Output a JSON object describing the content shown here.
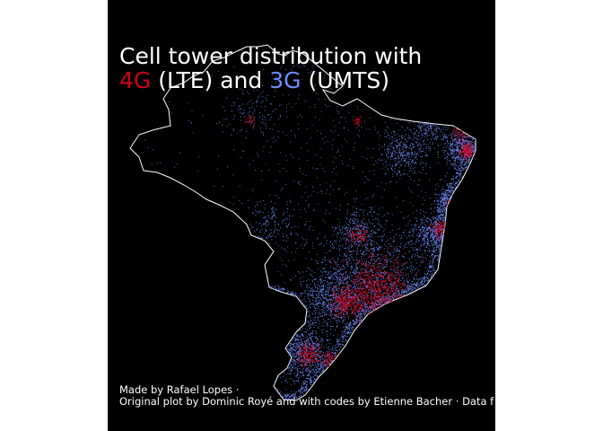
{
  "title": {
    "line1": "Cell tower distribution with",
    "highlight_4g": "4G",
    "text_lte": " (LTE) and ",
    "highlight_3g": "3G",
    "text_umts": " (UMTS)"
  },
  "caption": {
    "line1": "Made by Rafael Lopes ·",
    "line2": "Original plot by Dominic Royé and with codes by Etienne Bacher · Data f"
  },
  "colors": {
    "background": "#000000",
    "page": "#ffffff",
    "outline": "#ffffff",
    "lte_4g": "#d0001b",
    "umts_3g": "#6f8cff",
    "text": "#ffffff"
  }
}
